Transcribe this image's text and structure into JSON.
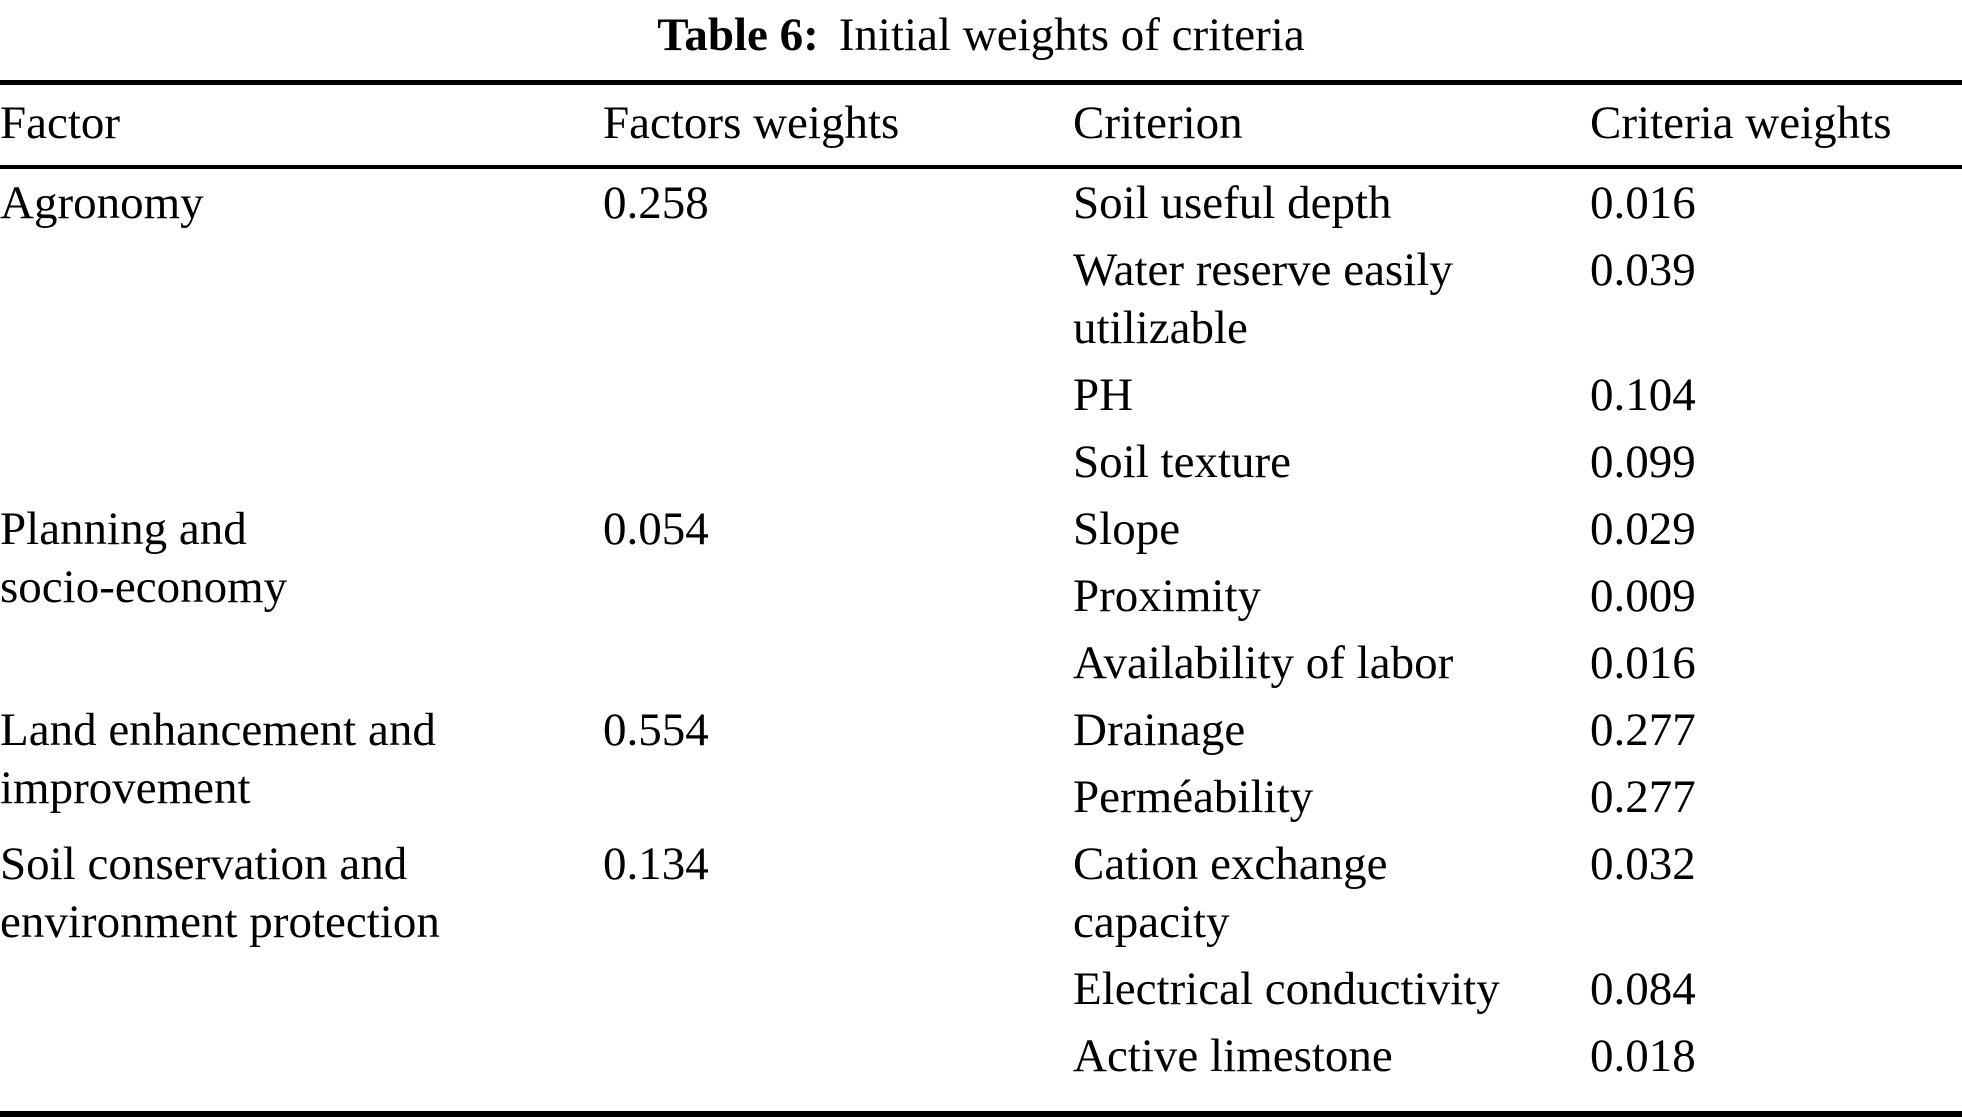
{
  "caption": {
    "label": "Table 6:",
    "text": "Initial weights of criteria"
  },
  "table": {
    "headers": [
      "Factor",
      "Factors weights",
      "Criterion",
      "Criteria weights"
    ],
    "groups": [
      {
        "factor": "Agronomy",
        "factor_weight": "0.258",
        "criteria": [
          {
            "name": "Soil useful depth",
            "weight": "0.016"
          },
          {
            "name": "Water reserve easily\nutilizable",
            "weight": "0.039"
          },
          {
            "name": "PH",
            "weight": "0.104"
          },
          {
            "name": "Soil texture",
            "weight": "0.099"
          }
        ]
      },
      {
        "factor": "Planning and\nsocio-economy",
        "factor_weight": "0.054",
        "criteria": [
          {
            "name": "Slope",
            "weight": "0.029"
          },
          {
            "name": "Proximity",
            "weight": "0.009"
          },
          {
            "name": "Availability of labor",
            "weight": "0.016"
          }
        ]
      },
      {
        "factor": "Land enhancement and\nimprovement",
        "factor_weight": "0.554",
        "criteria": [
          {
            "name": "Drainage",
            "weight": "0.277"
          },
          {
            "name": "Perméability",
            "weight": "0.277"
          }
        ]
      },
      {
        "factor": "Soil conservation and\nenvironment protection",
        "factor_weight": "0.134",
        "criteria": [
          {
            "name": "Cation exchange\ncapacity",
            "weight": "0.032"
          },
          {
            "name": "Electrical conductivity",
            "weight": "0.084"
          },
          {
            "name": "Active limestone",
            "weight": "0.018"
          }
        ]
      }
    ]
  }
}
